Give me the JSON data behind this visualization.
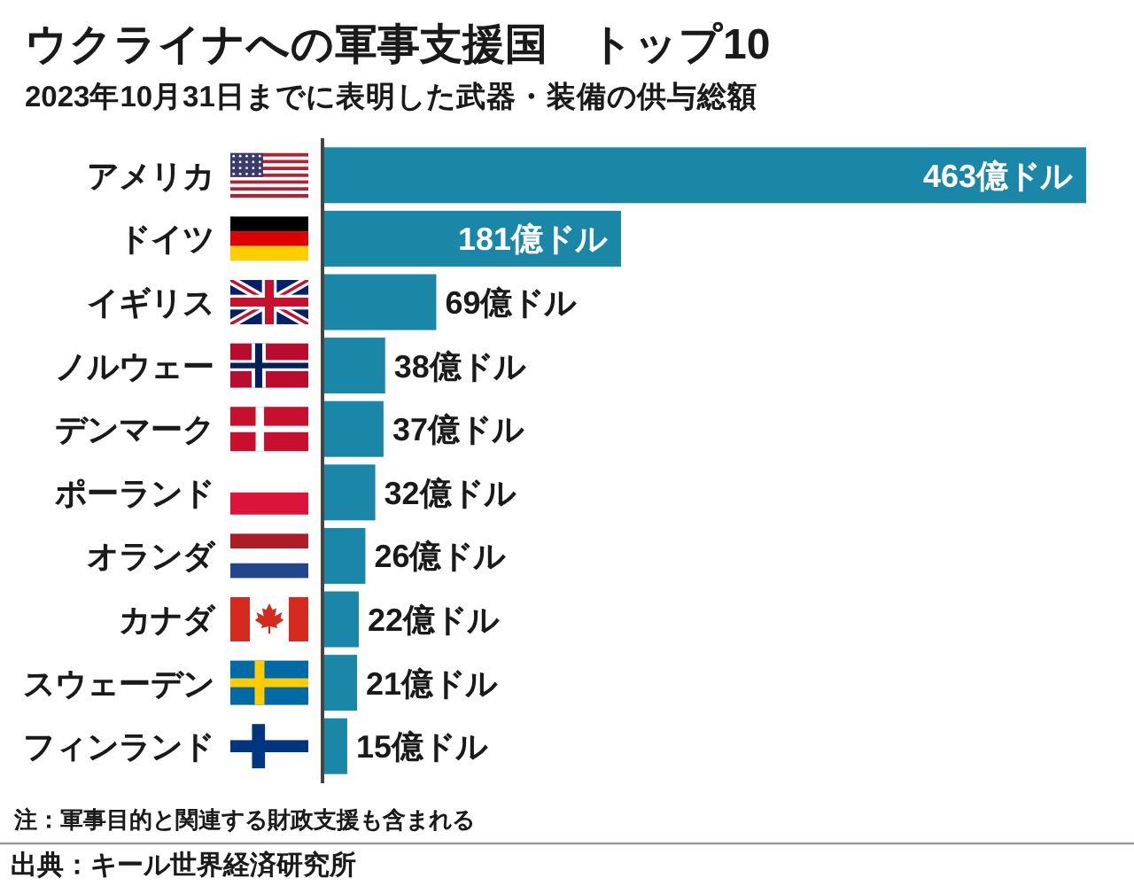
{
  "chart_data": {
    "type": "bar",
    "orientation": "horizontal",
    "title": "ウクライナへの軍事支援国　トップ10",
    "subtitle": "2023年10月31日までに表明した武器・装備の供与総額",
    "categories": [
      "アメリカ",
      "ドイツ",
      "イギリス",
      "ノルウェー",
      "デンマーク",
      "ポーランド",
      "オランダ",
      "カナダ",
      "スウェーデン",
      "フィンランド"
    ],
    "values": [
      463,
      181,
      69,
      38,
      37,
      32,
      26,
      22,
      21,
      15
    ],
    "value_labels": [
      "463億ドル",
      "181億ドル",
      "69億ドル",
      "38億ドル",
      "37億ドル",
      "32億ドル",
      "26億ドル",
      "22億ドル",
      "21億ドル",
      "15億ドル"
    ],
    "color": "#1a87a8",
    "annotations": [
      "注：軍事目的と関連する財政支援も含まれる",
      "出典：キール世界経済研究所"
    ]
  }
}
